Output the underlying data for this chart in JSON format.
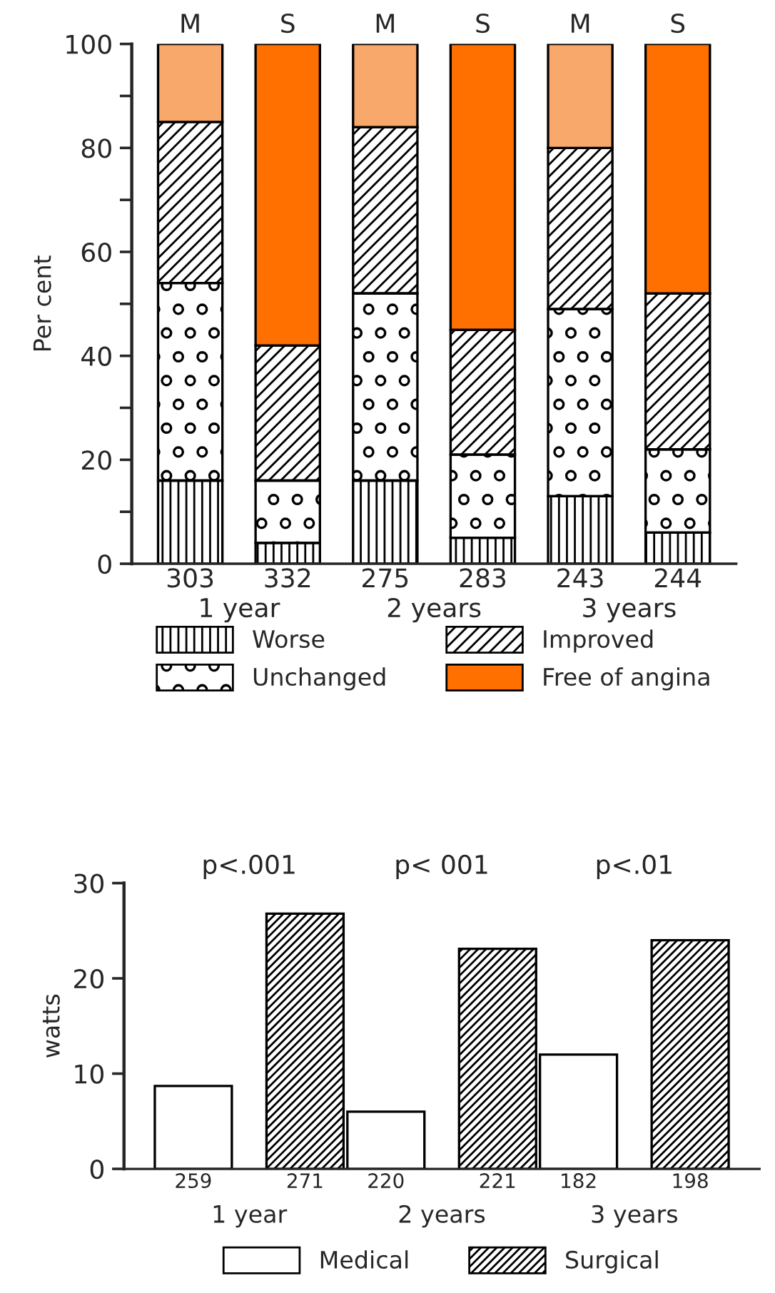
{
  "chart_data": [
    {
      "type": "bar",
      "stacked": true,
      "ylabel": "Per cent",
      "categories": [
        "303",
        "332",
        "275",
        "283",
        "243",
        "244"
      ],
      "series": [
        {
          "name": "Worse",
          "color": "#000000",
          "values": [
            16,
            4,
            16,
            5,
            13,
            6
          ]
        },
        {
          "name": "Unchanged",
          "color": "#000000",
          "values": [
            38,
            12,
            36,
            16,
            36,
            16
          ]
        },
        {
          "name": "Improved",
          "color": "#000000",
          "values": [
            31,
            26,
            32,
            24,
            31,
            30
          ]
        },
        {
          "name": "Free of angina",
          "color": "#ff7000",
          "colors": [
            "#f8a86a",
            "#ff7000",
            "#f8a86a",
            "#ff7000",
            "#f8a86a",
            "#ff7000"
          ],
          "values": [
            15,
            58,
            16,
            55,
            20,
            48
          ]
        }
      ],
      "ylim": [
        0,
        100
      ],
      "yticks": [
        0,
        {
          "value": 10,
          "label": null
        },
        20,
        {
          "value": 30,
          "label": null
        },
        40,
        {
          "value": 50,
          "label": null
        },
        60,
        {
          "value": 70,
          "label": null
        },
        80,
        {
          "value": 90,
          "label": null
        },
        100
      ],
      "annotations": [
        {
          "text": "M",
          "x": "303",
          "y": 100
        },
        {
          "text": "S",
          "x": "332",
          "y": 100
        },
        {
          "text": "M",
          "x": "275",
          "y": 100
        },
        {
          "text": "S",
          "x": "283",
          "y": 100
        },
        {
          "text": "M",
          "x": "243",
          "y": 100
        },
        {
          "text": "S",
          "x": "244",
          "y": 100
        },
        "1 year",
        "2 years",
        "3 years"
      ],
      "legend": "bottom",
      "grid": false
    },
    {
      "type": "bar",
      "ylabel": "watts",
      "categories": [
        "1 year",
        "2 years",
        "3 years"
      ],
      "series": [
        {
          "name": "Medical",
          "color": "#ffffff",
          "values": [
            8.7,
            6.0,
            12.0
          ]
        },
        {
          "name": "Surgical",
          "color": "#000000",
          "values": [
            26.8,
            23.1,
            24.0
          ]
        }
      ],
      "ylim": [
        0,
        30
      ],
      "yticks": [
        0,
        10,
        20,
        30
      ],
      "annotations": [
        "p<.001",
        "p< 001",
        "p<.01",
        "259",
        "271",
        "220",
        "221",
        "182",
        "198"
      ],
      "legend": "bottom",
      "grid": false
    }
  ]
}
